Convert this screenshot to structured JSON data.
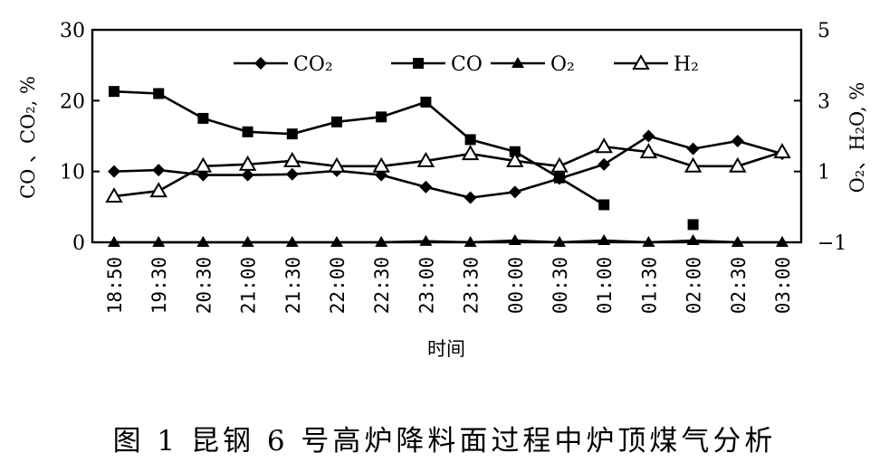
{
  "caption": "图 1   昆钢 6 号高炉降料面过程中炉顶煤气分析",
  "chart_data": {
    "type": "line",
    "xlabel": "时间",
    "ylabel_left": "CO 、CO₂, %",
    "ylabel_right": "O₂、H₂O, %",
    "categories": [
      "18:50",
      "19:30",
      "20:30",
      "21:00",
      "21:30",
      "22:00",
      "22:30",
      "23:00",
      "23:30",
      "00:00",
      "00:30",
      "01:00",
      "01:30",
      "02:00",
      "02:30",
      "03:00"
    ],
    "ylim_left": [
      0,
      30
    ],
    "yticks_left": [
      0,
      10,
      20,
      30
    ],
    "ylim_right": [
      -1,
      5
    ],
    "yticks_right": [
      -1,
      1,
      3,
      5
    ],
    "legend_position": "top",
    "series": [
      {
        "name": "CO₂",
        "axis": "left",
        "marker": "diamond",
        "values": [
          10,
          10.2,
          9.5,
          9.5,
          9.6,
          10.1,
          9.5,
          7.8,
          6.3,
          7.1,
          9,
          11,
          15,
          13.2,
          14.3,
          12.5
        ]
      },
      {
        "name": "CO",
        "axis": "left",
        "marker": "square",
        "values": [
          21.3,
          21,
          17.5,
          15.6,
          15.3,
          17,
          17.7,
          19.8,
          14.5,
          12.8,
          9.1,
          5.3,
          null,
          2.5,
          null,
          null
        ]
      },
      {
        "name": "O₂",
        "axis": "right",
        "marker": "triangle",
        "values": [
          -1,
          -1,
          -1,
          -1,
          -1,
          -1,
          -1,
          -0.97,
          -1,
          -0.95,
          -1,
          -0.95,
          -1,
          -0.95,
          -1,
          -1
        ]
      },
      {
        "name": "H₂",
        "axis": "right",
        "marker": "triangle-open",
        "values": [
          0.3,
          0.45,
          1.15,
          1.2,
          1.3,
          1.15,
          1.15,
          1.3,
          1.5,
          1.3,
          1.15,
          1.7,
          1.55,
          1.15,
          1.15,
          1.55
        ]
      }
    ]
  }
}
